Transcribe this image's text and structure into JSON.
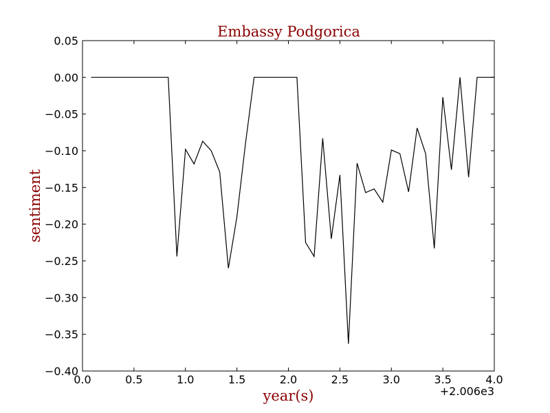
{
  "chart_data": {
    "type": "line",
    "title": "Embassy Podgorica",
    "xlabel": "year(s)",
    "ylabel": "sentiment",
    "x_offset_label": "+2.006e3",
    "xlim": [
      0.0,
      4.0
    ],
    "ylim": [
      -0.4,
      0.05
    ],
    "x_ticks": [
      0.0,
      0.5,
      1.0,
      1.5,
      2.0,
      2.5,
      3.0,
      3.5,
      4.0
    ],
    "x_tick_labels": [
      "0.0",
      "0.5",
      "1.0",
      "1.5",
      "2.0",
      "2.5",
      "3.0",
      "3.5",
      "4.0"
    ],
    "y_ticks": [
      0.05,
      0.0,
      -0.05,
      -0.1,
      -0.15,
      -0.2,
      -0.25,
      -0.3,
      -0.35,
      -0.4
    ],
    "y_tick_labels": [
      "0.05",
      "0.00",
      "−0.05",
      "−0.10",
      "−0.15",
      "−0.20",
      "−0.25",
      "−0.30",
      "−0.35",
      "−0.40"
    ],
    "grid": false,
    "colors": {
      "line": "#000000",
      "title": "#8b0000",
      "labels": "#8b0000"
    },
    "series": [
      {
        "x": [
          0.083,
          0.167,
          0.25,
          0.333,
          0.417,
          0.5,
          0.583,
          0.667,
          0.75,
          0.833,
          0.917,
          1.0,
          1.083,
          1.167,
          1.25,
          1.333,
          1.417,
          1.5,
          1.583,
          1.667,
          1.75,
          1.833,
          1.917,
          2.0,
          2.083,
          2.167,
          2.25,
          2.333,
          2.417,
          2.5,
          2.583,
          2.667,
          2.75,
          2.833,
          2.917,
          3.0,
          3.083,
          3.167,
          3.25,
          3.333,
          3.417,
          3.5,
          3.583,
          3.667,
          3.75,
          3.833,
          3.917,
          4.0
        ],
        "y": [
          0.0,
          0.0,
          0.0,
          0.0,
          0.0,
          0.0,
          0.0,
          0.0,
          0.0,
          0.0,
          -0.244,
          -0.098,
          -0.118,
          -0.087,
          -0.1,
          -0.129,
          -0.26,
          -0.19,
          -0.09,
          0.0,
          0.0,
          0.0,
          0.0,
          0.0,
          0.0,
          -0.225,
          -0.244,
          -0.083,
          -0.22,
          -0.133,
          -0.363,
          -0.117,
          -0.157,
          -0.152,
          -0.17,
          -0.099,
          -0.104,
          -0.156,
          -0.069,
          -0.104,
          -0.233,
          -0.027,
          -0.126,
          0.0,
          -0.136,
          0.0,
          0.0,
          0.0
        ]
      }
    ]
  }
}
